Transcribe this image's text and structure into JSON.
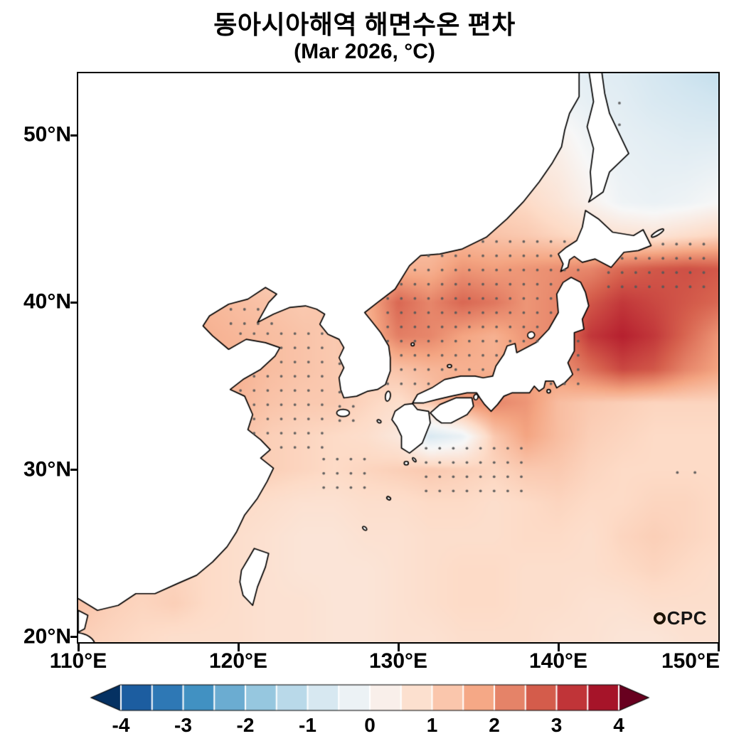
{
  "title": "동아시아해역 해면수온 편차",
  "subtitle": "(Mar 2026, °C)",
  "watermark": {
    "full": "OCPC",
    "emblem": "O",
    "text": "CPC"
  },
  "axes": {
    "x_ticks": [
      {
        "lon": 110,
        "label": "110°E"
      },
      {
        "lon": 120,
        "label": "120°E"
      },
      {
        "lon": 130,
        "label": "130°E"
      },
      {
        "lon": 140,
        "label": "140°E"
      },
      {
        "lon": 150,
        "label": "150°E"
      }
    ],
    "y_ticks": [
      {
        "lat": 50,
        "label": "50°N"
      },
      {
        "lat": 40,
        "label": "40°N"
      },
      {
        "lat": 30,
        "label": "30°N"
      },
      {
        "lat": 20,
        "label": "20°N"
      }
    ]
  },
  "colorbar": {
    "tick_labels": [
      "-4",
      "-3",
      "-2",
      "-1",
      "0",
      "1",
      "2",
      "3",
      "4"
    ],
    "min": -4,
    "max": 4,
    "interval": 0.5,
    "domain": [
      -4.5,
      4.5
    ],
    "anchors": [
      "#053061",
      "#2166ac",
      "#4393c3",
      "#92c5de",
      "#d1e5f0",
      "#f7f7f7",
      "#fddbc7",
      "#f4a582",
      "#d6604d",
      "#b2182b",
      "#67001f"
    ]
  },
  "chart_data": {
    "type": "heatmap",
    "title": "동아시아해역 해면수온 편차",
    "subtitle": "(Mar 2026, °C)",
    "variable": "sea surface temperature anomaly",
    "units": "°C",
    "lon_range": [
      110,
      150
    ],
    "lat_range": [
      19.7,
      53.7
    ],
    "colorbar_range": [
      -4,
      4
    ],
    "grid_lon": [
      110,
      112,
      114,
      116,
      118,
      120,
      122,
      124,
      126,
      128,
      130,
      132,
      134,
      136,
      138,
      140,
      142,
      144,
      146,
      148,
      150
    ],
    "grid_lat": [
      20,
      22,
      24,
      26,
      28,
      30,
      32,
      34,
      36,
      38,
      40,
      42,
      44,
      46,
      48,
      50,
      52,
      54
    ],
    "anomaly_grid": [
      [
        1.1,
        1.0,
        0.9,
        0.8,
        0.8,
        0.8,
        0.7,
        0.7,
        0.6,
        0.6,
        0.7,
        0.7,
        0.8,
        0.8,
        0.8,
        0.7,
        0.7,
        0.6,
        0.6,
        0.7,
        0.7
      ],
      [
        1.3,
        1.1,
        1.0,
        1.1,
        0.9,
        0.8,
        0.7,
        0.7,
        0.6,
        0.6,
        0.7,
        0.8,
        0.9,
        0.9,
        0.8,
        0.8,
        0.7,
        0.7,
        0.8,
        0.8,
        0.8
      ],
      [
        0.9,
        1.0,
        1.1,
        1.0,
        0.9,
        0.8,
        0.7,
        0.6,
        0.6,
        0.6,
        0.7,
        0.8,
        0.9,
        0.9,
        0.8,
        0.8,
        0.8,
        0.9,
        1.0,
        0.9,
        0.8
      ],
      [
        0.8,
        0.9,
        1.1,
        1.0,
        0.9,
        0.8,
        0.7,
        0.6,
        0.6,
        0.7,
        0.7,
        0.8,
        0.8,
        0.8,
        0.9,
        0.9,
        0.8,
        1.0,
        1.1,
        1.0,
        0.9
      ],
      [
        0.8,
        0.9,
        1.2,
        1.3,
        1.1,
        0.9,
        0.8,
        0.7,
        0.7,
        0.8,
        0.8,
        0.9,
        0.9,
        0.8,
        0.9,
        1.0,
        0.9,
        0.9,
        1.0,
        1.0,
        0.9
      ],
      [
        0.8,
        0.9,
        1.3,
        1.5,
        1.4,
        1.2,
        1.1,
        1.0,
        0.9,
        1.0,
        1.1,
        1.2,
        1.1,
        1.0,
        1.2,
        1.2,
        1.0,
        0.9,
        0.9,
        0.9,
        0.9
      ],
      [
        0.8,
        0.9,
        1.4,
        1.6,
        1.5,
        1.3,
        1.1,
        1.0,
        0.9,
        0.8,
        0.5,
        -0.7,
        -0.3,
        1.2,
        1.8,
        1.4,
        1.1,
        1.0,
        0.9,
        0.9,
        0.9
      ],
      [
        0.8,
        0.9,
        1.3,
        1.5,
        1.4,
        1.5,
        1.3,
        1.2,
        1.2,
        1.0,
        0.8,
        1.2,
        2.0,
        2.2,
        2.0,
        1.4,
        1.2,
        1.1,
        1.0,
        1.0,
        1.0
      ],
      [
        0.7,
        0.9,
        1.2,
        1.6,
        1.5,
        1.6,
        1.4,
        1.3,
        1.2,
        1.1,
        1.3,
        1.5,
        1.6,
        1.6,
        1.8,
        2.0,
        2.5,
        3.0,
        2.8,
        2.2,
        1.8
      ],
      [
        0.6,
        0.8,
        1.0,
        1.4,
        1.6,
        1.5,
        1.4,
        1.3,
        1.2,
        1.5,
        2.3,
        2.2,
        1.8,
        1.6,
        2.0,
        2.2,
        3.2,
        3.5,
        3.2,
        2.6,
        2.0
      ],
      [
        0.5,
        0.7,
        0.9,
        1.2,
        1.5,
        1.4,
        1.3,
        1.2,
        1.3,
        1.6,
        2.6,
        2.2,
        2.6,
        2.4,
        2.0,
        2.2,
        2.8,
        3.2,
        3.0,
        2.8,
        2.6
      ],
      [
        0.4,
        0.6,
        0.8,
        1.0,
        1.2,
        1.2,
        1.1,
        1.0,
        1.1,
        1.3,
        1.6,
        1.6,
        2.0,
        1.9,
        2.0,
        2.1,
        2.2,
        2.6,
        2.8,
        2.9,
        2.8
      ],
      [
        0.3,
        0.5,
        0.6,
        0.8,
        0.9,
        1.0,
        0.9,
        0.9,
        0.9,
        1.0,
        1.2,
        1.3,
        1.4,
        1.3,
        1.2,
        1.0,
        0.8,
        0.7,
        0.6,
        0.8,
        1.0
      ],
      [
        0.3,
        0.4,
        0.5,
        0.6,
        0.7,
        0.8,
        0.8,
        0.8,
        0.8,
        0.9,
        1.0,
        1.0,
        1.1,
        1.0,
        0.9,
        0.6,
        0.2,
        -0.2,
        -0.3,
        -0.2,
        0.0
      ],
      [
        0.2,
        0.3,
        0.4,
        0.5,
        0.6,
        0.6,
        0.7,
        0.7,
        0.7,
        0.8,
        0.8,
        0.9,
        0.9,
        0.8,
        0.6,
        0.4,
        0.0,
        -0.3,
        -0.4,
        -0.4,
        -0.3
      ],
      [
        0.2,
        0.3,
        0.3,
        0.4,
        0.5,
        0.5,
        0.6,
        0.6,
        0.6,
        0.7,
        0.7,
        0.7,
        0.7,
        0.6,
        0.5,
        0.2,
        -0.2,
        -0.4,
        -0.5,
        -0.6,
        -0.6
      ],
      [
        0.1,
        0.2,
        0.3,
        0.3,
        0.4,
        0.4,
        0.5,
        0.5,
        0.5,
        0.6,
        0.5,
        0.5,
        0.4,
        0.2,
        0.0,
        -0.2,
        -0.4,
        -0.5,
        -0.7,
        -0.8,
        -0.9
      ],
      [
        0.1,
        0.2,
        0.2,
        0.3,
        0.3,
        0.4,
        0.4,
        0.4,
        0.4,
        0.5,
        0.4,
        0.3,
        0.2,
        0.0,
        -0.2,
        -0.3,
        -0.5,
        -0.6,
        -0.8,
        -1.0,
        -1.1
      ]
    ],
    "stipple_regions": [
      [
        119.2,
        122.8,
        38.4,
        40.2,
        0.85
      ],
      [
        119.8,
        126.0,
        31.0,
        38.4,
        0.85
      ],
      [
        126.0,
        127.6,
        32.6,
        36.4,
        0.85
      ],
      [
        125.0,
        128.2,
        28.6,
        31.0,
        0.85
      ],
      [
        131.4,
        138.4,
        28.4,
        31.8,
        0.85
      ],
      [
        129.0,
        142.0,
        34.8,
        44.0,
        0.85
      ],
      [
        142.8,
        149.8,
        40.6,
        43.8,
        0.85
      ],
      [
        142.0,
        144.6,
        48.8,
        52.6,
        1.3
      ],
      [
        147.0,
        149.4,
        29.4,
        30.6,
        1.1
      ]
    ],
    "land": [
      [
        [
          110,
          22.3
        ],
        [
          111.2,
          21.6
        ],
        [
          112.5,
          21.9
        ],
        [
          113.6,
          22.6
        ],
        [
          114.8,
          22.6
        ],
        [
          116.2,
          23.2
        ],
        [
          117.4,
          23.7
        ],
        [
          118.4,
          24.5
        ],
        [
          119.3,
          25.4
        ],
        [
          119.9,
          26.3
        ],
        [
          120.4,
          27.3
        ],
        [
          121.2,
          28.3
        ],
        [
          121.8,
          29.3
        ],
        [
          122.2,
          30.1
        ],
        [
          121.4,
          30.7
        ],
        [
          122.0,
          31.2
        ],
        [
          121.4,
          31.8
        ],
        [
          120.6,
          32.4
        ],
        [
          120.9,
          33.3
        ],
        [
          120.4,
          34.4
        ],
        [
          119.5,
          34.8
        ],
        [
          120.3,
          35.4
        ],
        [
          121.4,
          36.0
        ],
        [
          122.3,
          36.8
        ],
        [
          122.6,
          37.3
        ],
        [
          121.7,
          37.6
        ],
        [
          120.5,
          37.8
        ],
        [
          119.4,
          37.2
        ],
        [
          118.4,
          38.0
        ],
        [
          117.8,
          38.6
        ],
        [
          118.2,
          39.2
        ],
        [
          119.4,
          39.9
        ],
        [
          120.6,
          40.2
        ],
        [
          121.7,
          40.9
        ],
        [
          122.4,
          40.5
        ],
        [
          121.9,
          40.0
        ],
        [
          121.2,
          38.8
        ],
        [
          122.2,
          39.3
        ],
        [
          123.2,
          39.7
        ],
        [
          124.2,
          39.8
        ],
        [
          124.9,
          39.6
        ],
        [
          125.4,
          39.3
        ],
        [
          125.1,
          38.7
        ],
        [
          125.6,
          38.1
        ],
        [
          126.3,
          37.8
        ],
        [
          126.6,
          37.3
        ],
        [
          126.3,
          36.7
        ],
        [
          126.6,
          36.1
        ],
        [
          126.3,
          35.5
        ],
        [
          126.4,
          34.8
        ],
        [
          126.6,
          34.3
        ],
        [
          127.4,
          34.4
        ],
        [
          128.1,
          34.7
        ],
        [
          128.7,
          34.8
        ],
        [
          129.2,
          35.1
        ],
        [
          129.5,
          35.9
        ],
        [
          129.5,
          36.7
        ],
        [
          129.4,
          37.4
        ],
        [
          128.9,
          38.2
        ],
        [
          128.4,
          38.8
        ],
        [
          127.9,
          39.4
        ],
        [
          128.7,
          40.0
        ],
        [
          129.8,
          40.8
        ],
        [
          130.7,
          42.2
        ],
        [
          131.4,
          42.8
        ],
        [
          132.6,
          42.9
        ],
        [
          134.0,
          43.2
        ],
        [
          135.5,
          43.9
        ],
        [
          136.8,
          45.0
        ],
        [
          137.8,
          46.0
        ],
        [
          138.8,
          47.2
        ],
        [
          139.6,
          48.3
        ],
        [
          140.2,
          49.3
        ],
        [
          140.4,
          50.3
        ],
        [
          140.7,
          51.3
        ],
        [
          141.3,
          52.3
        ],
        [
          141.3,
          53.9
        ],
        [
          109.5,
          53.9
        ],
        [
          109.5,
          22.0
        ]
      ],
      [
        [
          141.9,
          53.9
        ],
        [
          142.2,
          52.0
        ],
        [
          141.8,
          50.5
        ],
        [
          142.2,
          49.2
        ],
        [
          142.0,
          47.8
        ],
        [
          142.1,
          46.5
        ],
        [
          141.9,
          46.0
        ],
        [
          142.8,
          46.6
        ],
        [
          143.2,
          47.8
        ],
        [
          144.4,
          48.9
        ],
        [
          143.9,
          49.9
        ],
        [
          143.2,
          51.3
        ],
        [
          142.9,
          52.5
        ],
        [
          142.7,
          53.9
        ]
      ],
      [
        [
          140.15,
          41.85
        ],
        [
          140.3,
          42.3
        ],
        [
          140.0,
          42.9
        ],
        [
          140.5,
          43.3
        ],
        [
          141.15,
          43.7
        ],
        [
          141.5,
          44.5
        ],
        [
          141.7,
          45.5
        ],
        [
          142.5,
          45.0
        ],
        [
          143.4,
          44.2
        ],
        [
          144.7,
          44.0
        ],
        [
          145.3,
          44.35
        ],
        [
          145.8,
          43.4
        ],
        [
          145.0,
          43.1
        ],
        [
          144.1,
          43.0
        ],
        [
          143.3,
          42.1
        ],
        [
          142.3,
          42.6
        ],
        [
          141.5,
          42.4
        ],
        [
          141.0,
          42.75
        ],
        [
          140.7,
          42.55
        ],
        [
          140.6,
          42.1
        ]
      ],
      [
        [
          140.8,
          41.5
        ],
        [
          140.3,
          41.2
        ],
        [
          139.9,
          40.5
        ],
        [
          140.0,
          39.4
        ],
        [
          139.4,
          38.4
        ],
        [
          138.6,
          37.6
        ],
        [
          137.4,
          37.0
        ],
        [
          137.3,
          37.55
        ],
        [
          136.8,
          37.4
        ],
        [
          136.6,
          36.9
        ],
        [
          136.1,
          36.2
        ],
        [
          135.9,
          35.6
        ],
        [
          135.3,
          35.5
        ],
        [
          134.8,
          35.6
        ],
        [
          133.9,
          35.6
        ],
        [
          132.9,
          35.4
        ],
        [
          132.1,
          34.9
        ],
        [
          131.2,
          34.5
        ],
        [
          130.9,
          34.0
        ],
        [
          131.6,
          34.0
        ],
        [
          132.4,
          34.2
        ],
        [
          133.3,
          34.4
        ],
        [
          134.3,
          34.6
        ],
        [
          134.9,
          34.6
        ],
        [
          135.1,
          34.3
        ],
        [
          135.4,
          33.9
        ],
        [
          135.8,
          33.5
        ],
        [
          136.2,
          33.9
        ],
        [
          136.6,
          34.4
        ],
        [
          137.1,
          34.6
        ],
        [
          137.7,
          34.6
        ],
        [
          138.2,
          34.6
        ],
        [
          138.5,
          35.0
        ],
        [
          138.8,
          34.7
        ],
        [
          139.1,
          34.9
        ],
        [
          139.2,
          35.3
        ],
        [
          139.7,
          35.3
        ],
        [
          139.9,
          34.9
        ],
        [
          140.4,
          35.2
        ],
        [
          140.9,
          35.7
        ],
        [
          140.6,
          36.4
        ],
        [
          141.0,
          37.1
        ],
        [
          141.0,
          38.2
        ],
        [
          141.6,
          38.4
        ],
        [
          141.5,
          39.0
        ],
        [
          141.9,
          39.8
        ],
        [
          141.7,
          40.6
        ],
        [
          141.4,
          41.2
        ]
      ],
      [
        [
          130.9,
          33.95
        ],
        [
          130.4,
          33.9
        ],
        [
          129.8,
          33.5
        ],
        [
          129.6,
          33.0
        ],
        [
          129.9,
          32.6
        ],
        [
          130.2,
          32.0
        ],
        [
          130.2,
          31.3
        ],
        [
          130.7,
          31.0
        ],
        [
          131.1,
          31.3
        ],
        [
          131.5,
          31.6
        ],
        [
          132.0,
          32.8
        ],
        [
          131.9,
          33.5
        ],
        [
          131.2,
          33.6
        ]
      ],
      [
        [
          132.0,
          33.4
        ],
        [
          132.6,
          33.9
        ],
        [
          133.6,
          34.3
        ],
        [
          134.6,
          34.3
        ],
        [
          134.7,
          33.8
        ],
        [
          134.3,
          33.3
        ],
        [
          133.3,
          32.8
        ],
        [
          132.7,
          32.8
        ],
        [
          132.4,
          33.0
        ]
      ],
      [
        [
          121.0,
          25.3
        ],
        [
          121.9,
          25.0
        ],
        [
          121.7,
          24.2
        ],
        [
          121.2,
          23.0
        ],
        [
          120.9,
          21.9
        ],
        [
          120.3,
          22.5
        ],
        [
          120.1,
          23.3
        ],
        [
          120.2,
          24.0
        ],
        [
          120.7,
          24.8
        ]
      ],
      [
        [
          110.0,
          21.6
        ],
        [
          110.6,
          21.3
        ],
        [
          110.4,
          20.5
        ],
        [
          110.0,
          20.3
        ]
      ]
    ],
    "islets": [
      [
        126.55,
        33.4,
        9,
        5,
        0
      ],
      [
        129.35,
        34.4,
        3.5,
        7,
        0.15
      ],
      [
        138.3,
        38.05,
        5,
        4.5,
        -0.5
      ],
      [
        133.2,
        36.2,
        3,
        2.2,
        0
      ],
      [
        130.9,
        37.5,
        2.2,
        2.2,
        0
      ],
      [
        139.4,
        34.7,
        2.5,
        2.5,
        0
      ],
      [
        130.5,
        30.4,
        3,
        2.5,
        0
      ],
      [
        131.0,
        30.6,
        3.5,
        1.6,
        0.9
      ],
      [
        129.4,
        28.3,
        3,
        2,
        0.6
      ],
      [
        127.9,
        26.5,
        3.5,
        2,
        0.7
      ],
      [
        128.8,
        32.9,
        3,
        2,
        0.5
      ],
      [
        134.85,
        34.35,
        3,
        4,
        0.2
      ],
      [
        146.2,
        44.15,
        10,
        2.6,
        -0.55
      ],
      [
        109.8,
        19.5,
        28,
        18,
        0
      ]
    ]
  }
}
